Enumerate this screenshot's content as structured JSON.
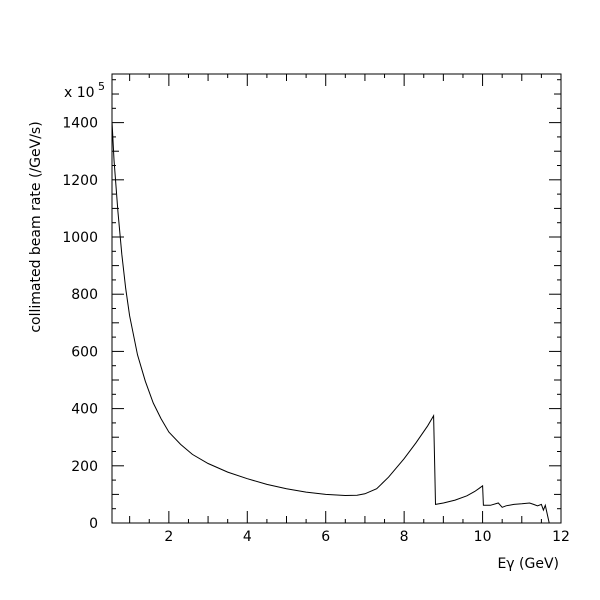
{
  "chart_data": {
    "type": "line",
    "xlabel": "Eγ (GeV)",
    "ylabel": "collimated beam rate (/GeV/s)",
    "y_multiplier": {
      "base": "x 10",
      "exponent": "5"
    },
    "xlim": [
      0.55,
      12
    ],
    "ylim": [
      0,
      1570
    ],
    "x_ticks": [
      2,
      4,
      6,
      8,
      10,
      12
    ],
    "x_tick_labels": [
      "2",
      "4",
      "6",
      "8",
      "10",
      "12"
    ],
    "y_ticks": [
      0,
      200,
      400,
      600,
      800,
      1000,
      1200,
      1400
    ],
    "y_tick_labels": [
      "0",
      "200",
      "400",
      "600",
      "800",
      "1000",
      "1200",
      "1400"
    ],
    "grid": false,
    "legend": "none",
    "series": [
      {
        "x": [
          0.55,
          0.6,
          0.7,
          0.8,
          0.9,
          1.0,
          1.2,
          1.4,
          1.6,
          1.8,
          2.0,
          2.3,
          2.6,
          3.0,
          3.5,
          4.0,
          4.5,
          5.0,
          5.5,
          6.0,
          6.5,
          6.8,
          7.0,
          7.3,
          7.6,
          8.0,
          8.3,
          8.6,
          8.75,
          8.78,
          8.8,
          9.0,
          9.3,
          9.6,
          9.8,
          9.9,
          10.0,
          10.02,
          10.2,
          10.4,
          10.5,
          10.6,
          10.8,
          11.0,
          11.2,
          11.3,
          11.4,
          11.5,
          11.55,
          11.6,
          11.65,
          11.7
        ],
        "values": [
          1405,
          1270,
          1090,
          940,
          820,
          725,
          588,
          496,
          420,
          365,
          318,
          275,
          240,
          208,
          178,
          155,
          135,
          120,
          108,
          100,
          96,
          97,
          102,
          120,
          160,
          225,
          280,
          340,
          375,
          200,
          65,
          70,
          80,
          95,
          110,
          120,
          130,
          62,
          62,
          70,
          55,
          60,
          65,
          67,
          70,
          65,
          60,
          65,
          45,
          62,
          30,
          0
        ]
      }
    ]
  }
}
